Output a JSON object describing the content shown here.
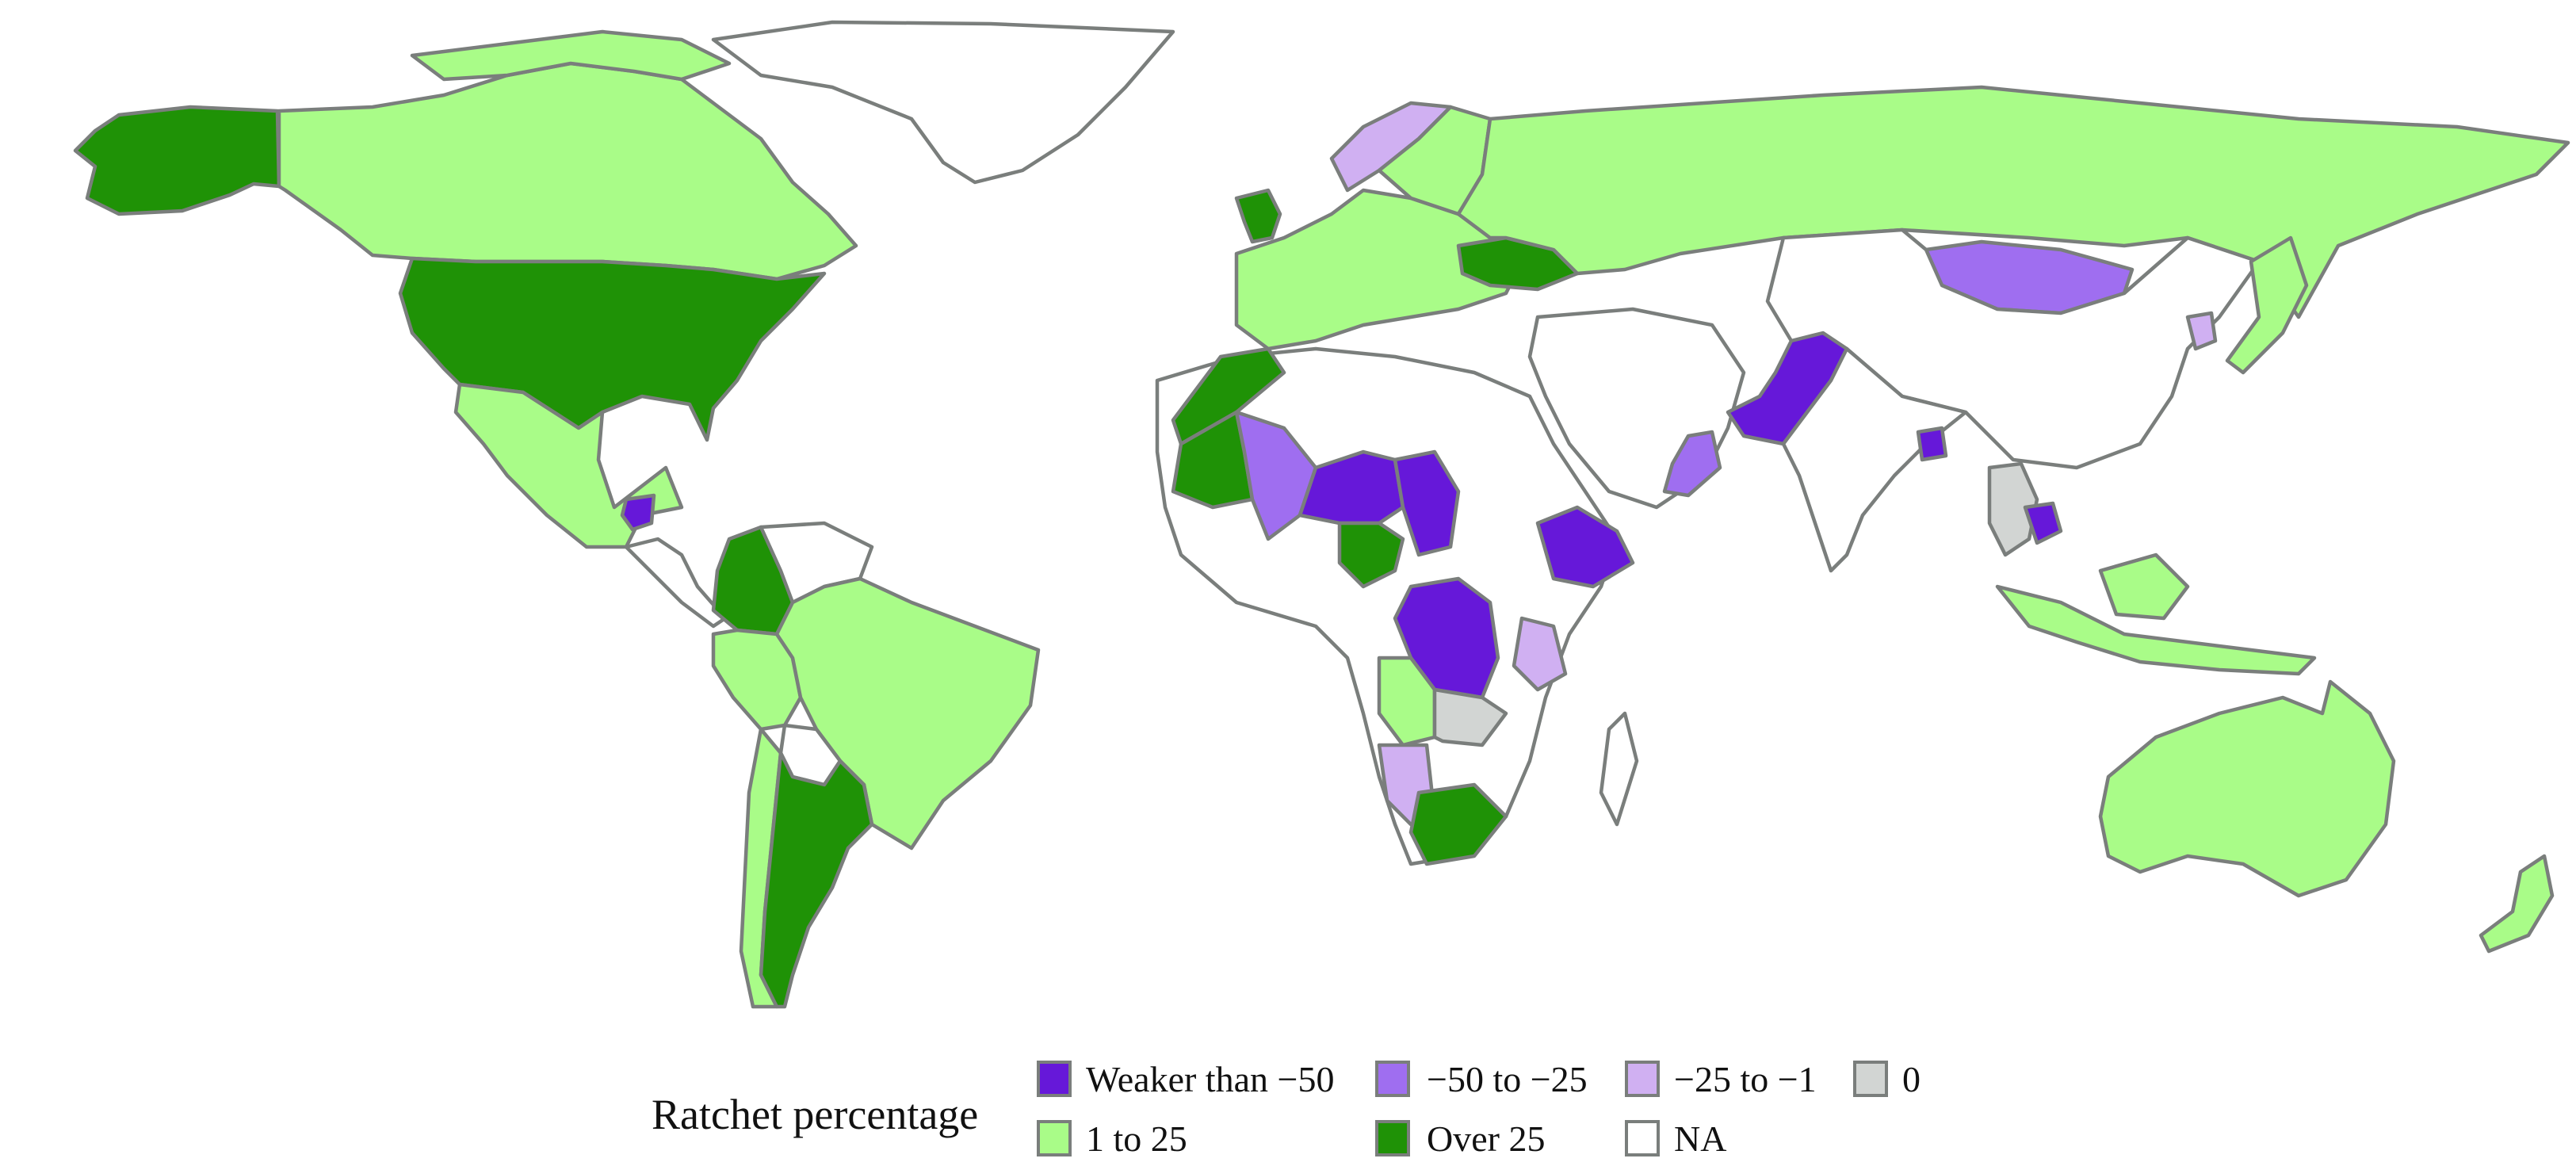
{
  "legend": {
    "title": "Ratchet percentage",
    "items": [
      {
        "key": "weaker_than_minus_50",
        "label": "Weaker than −50",
        "color": "#6618d9"
      },
      {
        "key": "minus_50_to_minus_25",
        "label": "−50 to −25",
        "color": "#9f6ef0"
      },
      {
        "key": "minus_25_to_minus_1",
        "label": "−25 to −1",
        "color": "#d0b0f2"
      },
      {
        "key": "zero",
        "label": "0",
        "color": "#d2d5d3"
      },
      {
        "key": "one_to_25",
        "label": "1 to 25",
        "color": "#a9fc88"
      },
      {
        "key": "over_25",
        "label": "Over 25",
        "color": "#1f9206"
      },
      {
        "key": "na",
        "label": "NA",
        "color": "#ffffff"
      }
    ]
  },
  "map": {
    "border_color": "#7a7e7c",
    "background": "#ffffff",
    "regions": [
      {
        "name": "Alaska",
        "category": "over_25"
      },
      {
        "name": "Canada",
        "category": "one_to_25"
      },
      {
        "name": "Greenland",
        "category": "na"
      },
      {
        "name": "United States",
        "category": "over_25"
      },
      {
        "name": "Mexico",
        "category": "one_to_25"
      },
      {
        "name": "Guatemala",
        "category": "weaker_than_minus_50"
      },
      {
        "name": "Colombia",
        "category": "over_25"
      },
      {
        "name": "Venezuela",
        "category": "na"
      },
      {
        "name": "Brazil",
        "category": "one_to_25"
      },
      {
        "name": "Peru",
        "category": "one_to_25"
      },
      {
        "name": "Bolivia",
        "category": "na"
      },
      {
        "name": "Argentina",
        "category": "over_25"
      },
      {
        "name": "Chile",
        "category": "one_to_25"
      },
      {
        "name": "Russia",
        "category": "one_to_25"
      },
      {
        "name": "Ukraine",
        "category": "over_25"
      },
      {
        "name": "United Kingdom",
        "category": "over_25"
      },
      {
        "name": "Norway",
        "category": "minus_25_to_minus_1"
      },
      {
        "name": "Europe",
        "category": "one_to_25"
      },
      {
        "name": "Mongolia",
        "category": "minus_50_to_minus_25"
      },
      {
        "name": "China",
        "category": "na"
      },
      {
        "name": "Pakistan",
        "category": "weaker_than_minus_50"
      },
      {
        "name": "India",
        "category": "na"
      },
      {
        "name": "Oman",
        "category": "minus_50_to_minus_25"
      },
      {
        "name": "Japan",
        "category": "one_to_25"
      },
      {
        "name": "Korea",
        "category": "minus_25_to_minus_1"
      },
      {
        "name": "Thailand",
        "category": "zero"
      },
      {
        "name": "Cambodia",
        "category": "weaker_than_minus_50"
      },
      {
        "name": "Indonesia",
        "category": "one_to_25"
      },
      {
        "name": "Australia",
        "category": "one_to_25"
      },
      {
        "name": "New Zealand",
        "category": "one_to_25"
      },
      {
        "name": "Morocco",
        "category": "over_25"
      },
      {
        "name": "Mauritania",
        "category": "over_25"
      },
      {
        "name": "Mali",
        "category": "minus_50_to_minus_25"
      },
      {
        "name": "Niger",
        "category": "weaker_than_minus_50"
      },
      {
        "name": "Chad",
        "category": "weaker_than_minus_50"
      },
      {
        "name": "Nigeria",
        "category": "over_25"
      },
      {
        "name": "Ethiopia",
        "category": "weaker_than_minus_50"
      },
      {
        "name": "DR Congo",
        "category": "weaker_than_minus_50"
      },
      {
        "name": "Angola",
        "category": "one_to_25"
      },
      {
        "name": "Zambia",
        "category": "zero"
      },
      {
        "name": "Tanzania",
        "category": "minus_25_to_minus_1"
      },
      {
        "name": "Namibia",
        "category": "minus_25_to_minus_1"
      },
      {
        "name": "South Africa",
        "category": "over_25"
      },
      {
        "name": "Madagascar",
        "category": "na"
      }
    ]
  }
}
